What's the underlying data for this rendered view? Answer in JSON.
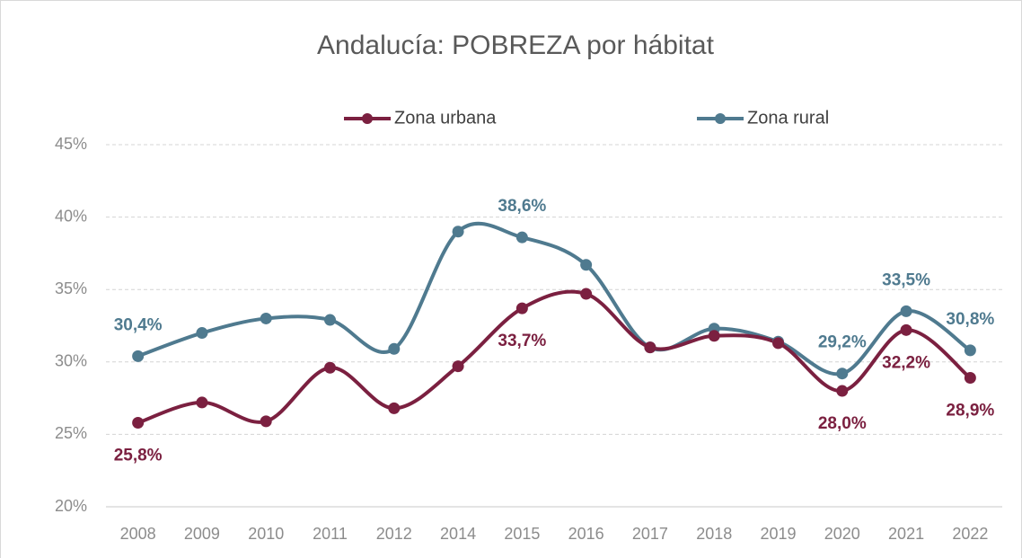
{
  "chart_data": {
    "type": "line",
    "title": "Andalucía: POBREZA por hábitat",
    "categories": [
      "2008",
      "2009",
      "2010",
      "2011",
      "2012",
      "2014",
      "2015",
      "2016",
      "2017",
      "2018",
      "2019",
      "2020",
      "2021",
      "2022"
    ],
    "series": [
      {
        "name": "Zona urbana",
        "color": "#7b2040",
        "values": [
          25.8,
          27.2,
          25.9,
          29.6,
          26.8,
          29.7,
          33.7,
          34.7,
          31.0,
          31.8,
          31.3,
          28.0,
          32.2,
          28.9
        ],
        "value_labels": [
          "25,8%",
          null,
          null,
          null,
          null,
          null,
          "33,7%",
          null,
          null,
          null,
          null,
          "28,0%",
          "32,2%",
          "28,9%"
        ]
      },
      {
        "name": "Zona rural",
        "color": "#4f7a8f",
        "values": [
          30.4,
          32.0,
          33.0,
          32.9,
          30.9,
          39.0,
          38.6,
          36.7,
          31.0,
          32.3,
          31.4,
          29.2,
          33.5,
          30.8
        ],
        "value_labels": [
          "30,4%",
          null,
          null,
          null,
          null,
          null,
          "38,6%",
          null,
          null,
          null,
          null,
          "29,2%",
          "33,5%",
          "30,8%"
        ]
      }
    ],
    "ylim": [
      20,
      45
    ],
    "yticks": [
      {
        "value": 20,
        "label": "20%"
      },
      {
        "value": 25,
        "label": "25%"
      },
      {
        "value": 30,
        "label": "30%"
      },
      {
        "value": 35,
        "label": "35%"
      },
      {
        "value": 40,
        "label": "40%"
      },
      {
        "value": 45,
        "label": "45%"
      }
    ],
    "grid": true,
    "legend": "top"
  }
}
